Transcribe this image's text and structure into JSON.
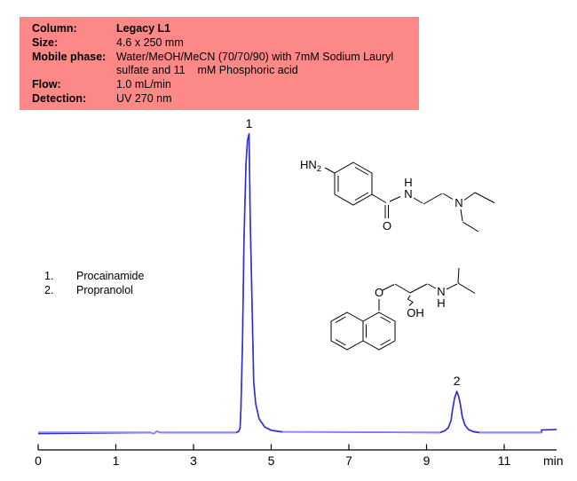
{
  "page_title": "HPLC chromatogram of Procainamide and Propranolol",
  "method_info": {
    "bg_color": "#fc8888",
    "rows": [
      {
        "label": "Column:",
        "value": "Legacy L1",
        "bold_value": true
      },
      {
        "label": "Size:",
        "value": "4.6 x 250 mm",
        "bold_value": false
      },
      {
        "label": "Mobile phase:",
        "value": "Water/MeOH/MeCN (70/70/90) with 7mM Sodium Lauryl",
        "bold_value": false
      },
      {
        "label": "",
        "value": "sulfate and 11    mM Phosphoric acid",
        "bold_value": false
      },
      {
        "label": "Flow:",
        "value": "1.0 mL/min",
        "bold_value": false
      },
      {
        "label": "Detection:",
        "value": "UV 270 nm",
        "bold_value": false
      }
    ]
  },
  "legend": {
    "items": [
      {
        "number": "1.",
        "name": "Procainamide"
      },
      {
        "number": "2.",
        "name": "Propranolol"
      }
    ]
  },
  "structures": {
    "procainamide": {
      "name": "Procainamide structure",
      "labels": {
        "amine_h": "HN",
        "amine_sub": "2",
        "carbonyl_o": "O",
        "amide_h": "H",
        "amide_n": "N",
        "amine_n": "N"
      }
    },
    "propranolol": {
      "name": "Propranolol structure",
      "labels": {
        "ether_o": "O",
        "hydroxyl": "OH",
        "amine_n": "N",
        "amine_h": "H"
      }
    }
  },
  "chart_data": {
    "type": "line",
    "title": "",
    "xlabel": "min",
    "ylabel": "",
    "x_ticks": {
      "values": [
        0,
        1,
        3,
        5,
        7,
        9,
        11
      ],
      "labels": [
        "0",
        "1",
        "3",
        "5",
        "7",
        "9",
        "11"
      ],
      "unit_label": "min"
    },
    "x_range_min": [
      0,
      12.35
    ],
    "grid": false,
    "legend_position": "left-middle",
    "detector_signal": "UV 270 nm",
    "peaks": [
      {
        "label": "1",
        "compound": "Procainamide",
        "retention_time_min": 4.43,
        "relative_height": 1.0
      },
      {
        "label": "2",
        "compound": "Propranolol",
        "retention_time_min": 9.78,
        "relative_height": 0.138
      }
    ],
    "trace": [
      [
        0,
        0
      ],
      [
        1.79,
        0
      ],
      [
        1.9,
        0
      ],
      [
        1.95,
        -0.004
      ],
      [
        2.0,
        -0.002
      ],
      [
        2.05,
        0.004
      ],
      [
        2.1,
        0.002
      ],
      [
        2.15,
        0
      ],
      [
        4.1,
        0
      ],
      [
        4.16,
        0.004
      ],
      [
        4.2,
        0.015
      ],
      [
        4.22,
        0.08
      ],
      [
        4.26,
        0.29
      ],
      [
        4.3,
        0.65
      ],
      [
        4.35,
        0.9
      ],
      [
        4.39,
        0.978
      ],
      [
        4.43,
        1.0
      ],
      [
        4.46,
        0.71
      ],
      [
        4.51,
        0.41
      ],
      [
        4.55,
        0.17
      ],
      [
        4.6,
        0.097
      ],
      [
        4.69,
        0.046
      ],
      [
        4.83,
        0.019
      ],
      [
        5.01,
        0.007
      ],
      [
        5.29,
        0.002
      ],
      [
        9.35,
        0
      ],
      [
        9.47,
        0.006
      ],
      [
        9.56,
        0.016
      ],
      [
        9.63,
        0.04
      ],
      [
        9.67,
        0.076
      ],
      [
        9.72,
        0.114
      ],
      [
        9.78,
        0.138
      ],
      [
        9.83,
        0.12
      ],
      [
        9.88,
        0.088
      ],
      [
        9.92,
        0.052
      ],
      [
        9.99,
        0.025
      ],
      [
        10.08,
        0.01
      ],
      [
        10.2,
        0.003
      ],
      [
        10.36,
        0
      ],
      [
        11.96,
        0
      ]
    ],
    "trace_end_segment": [
      [
        11.96,
        0.009
      ],
      [
        12.35,
        0.0105
      ]
    ],
    "peak_overlay_ranges": [
      [
        4.05,
        5.63
      ],
      [
        9.3,
        10.45
      ]
    ],
    "line_color": "#8a8aef",
    "peak_line_color": "#2e2ecb",
    "end_segment_color": "#2121c9",
    "axis_color": "#000000"
  }
}
